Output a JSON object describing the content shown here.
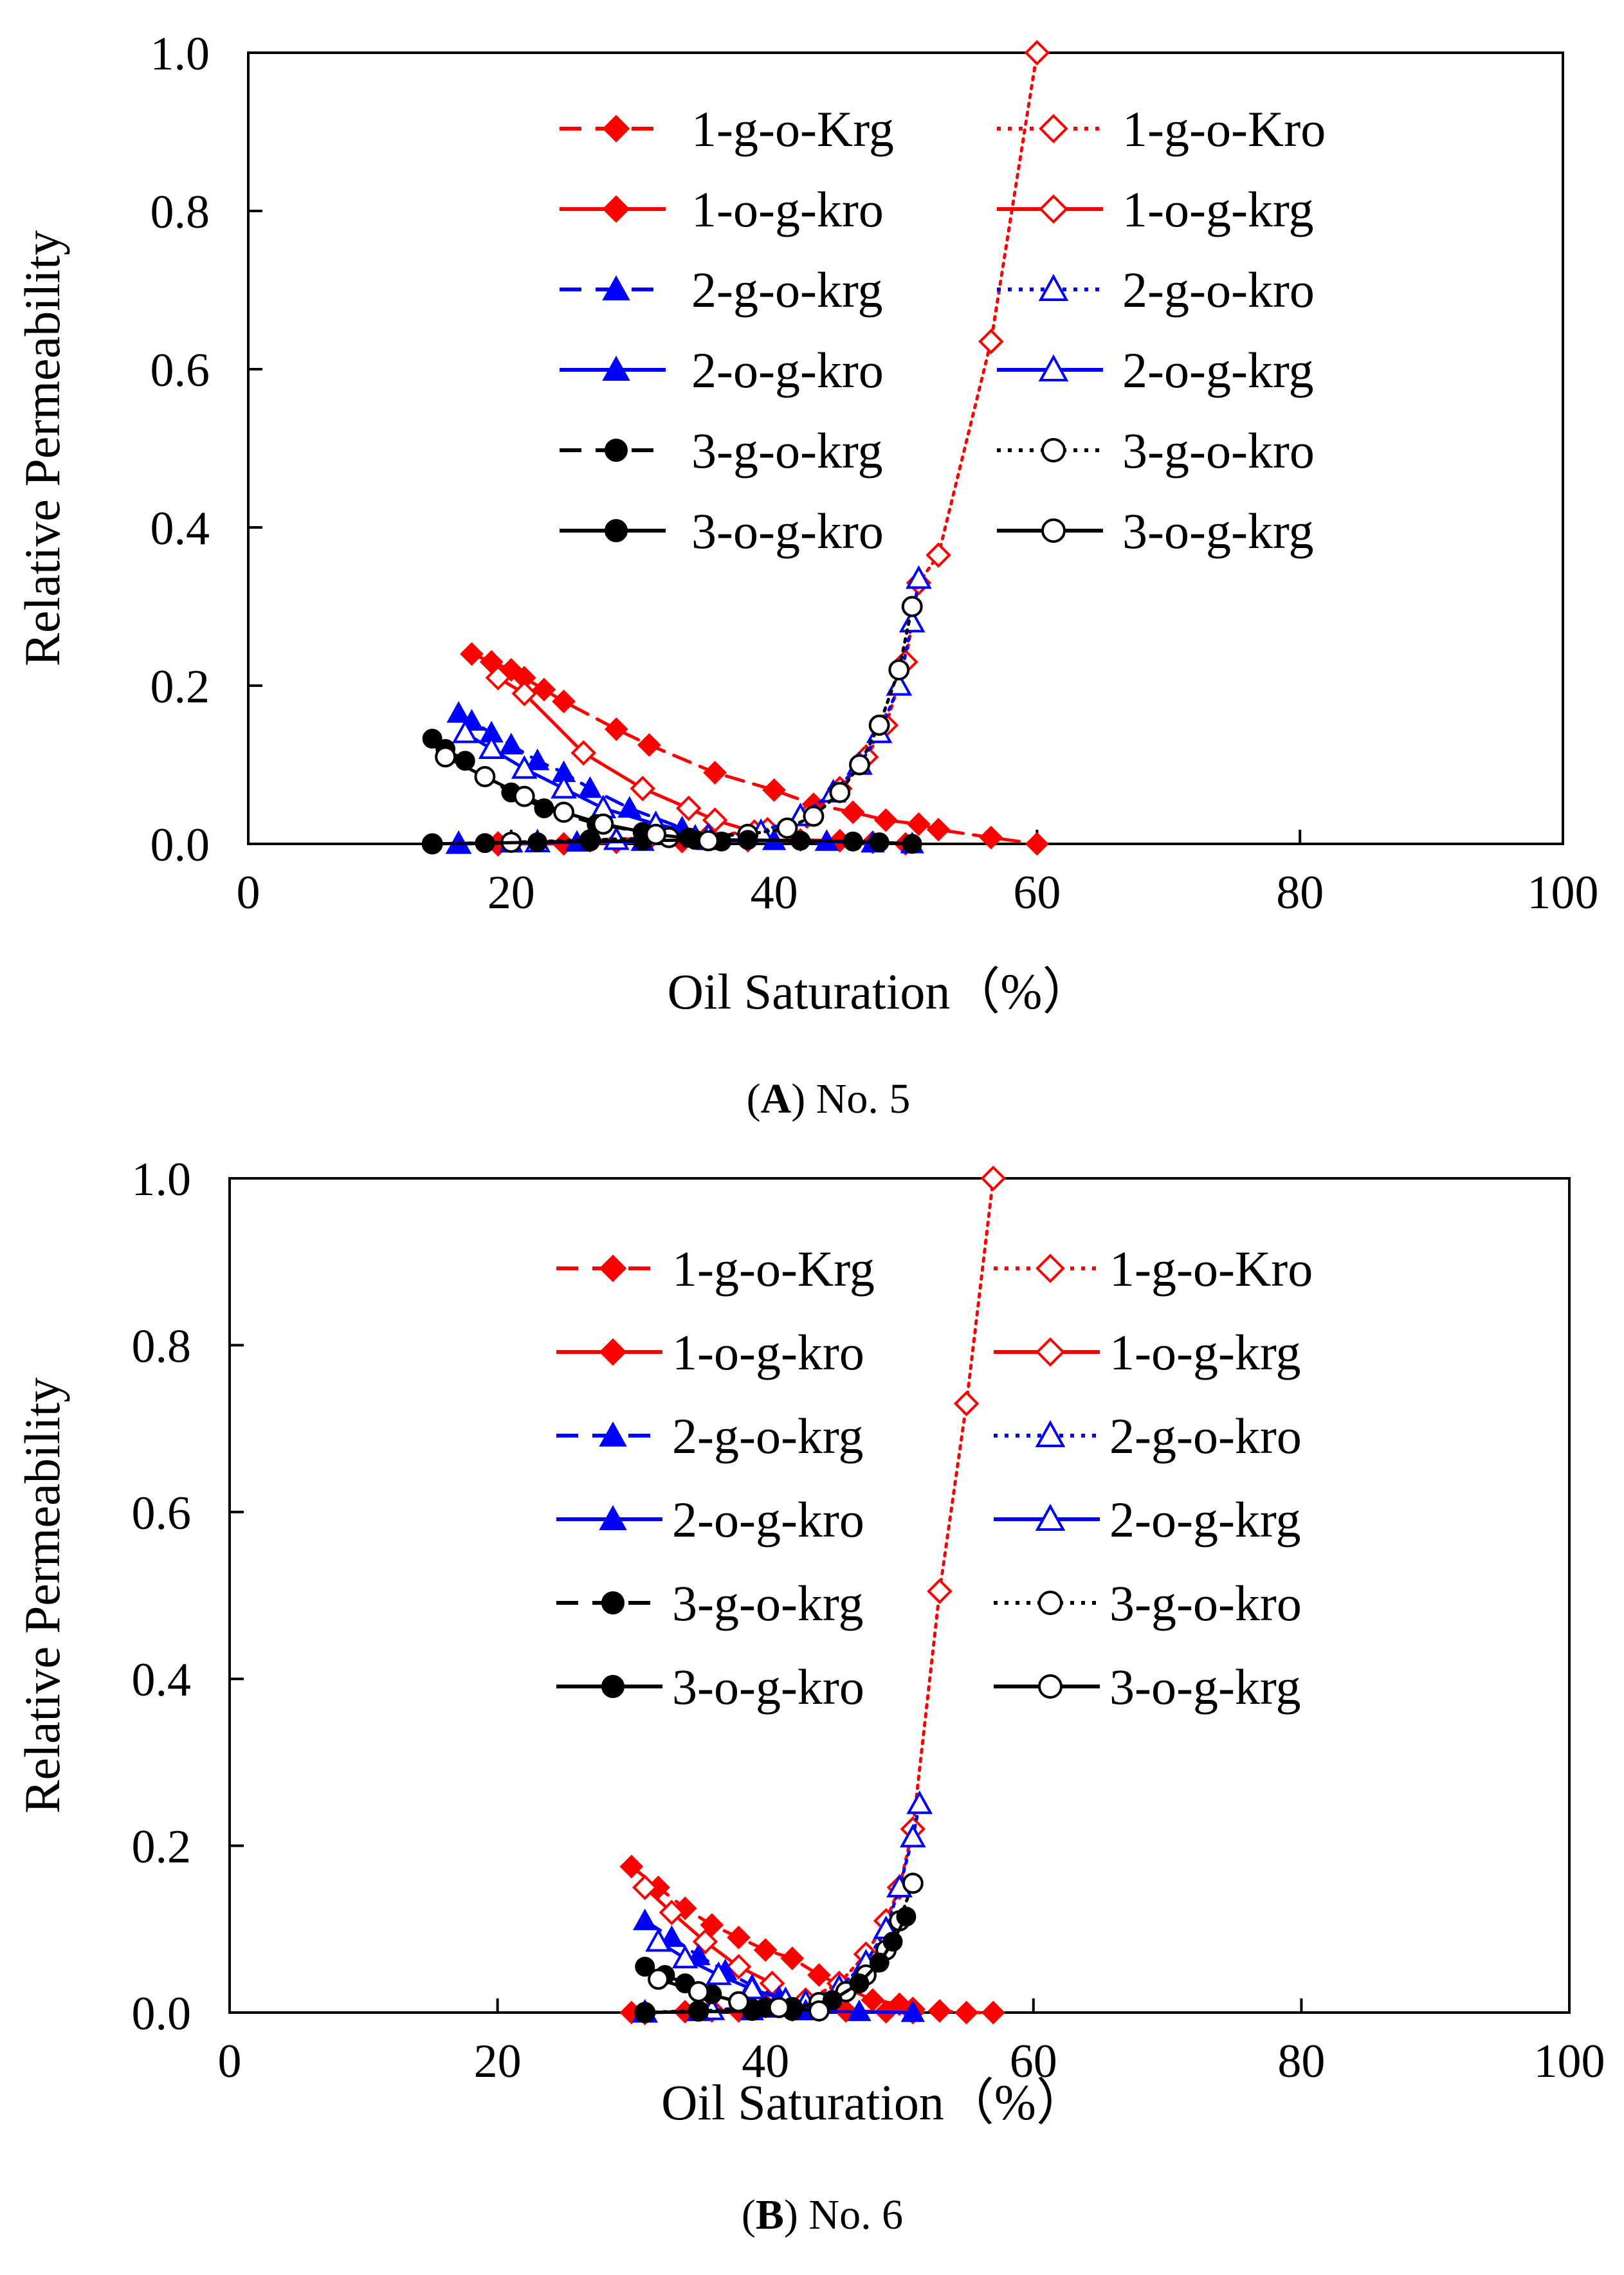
{
  "chart_data": [
    {
      "type": "line",
      "panel": "A",
      "caption": {
        "letter": "A",
        "text": " No. 5"
      },
      "xlabel": "Oil Saturation（%）",
      "ylabel": "Relative Permeability",
      "xlim": [
        0,
        100
      ],
      "ylim": [
        0,
        1.0
      ],
      "xticks": [
        "0",
        "20",
        "40",
        "60",
        "80",
        "100"
      ],
      "yticks": [
        "0.0",
        "0.2",
        "0.4",
        "0.6",
        "0.8",
        "1.0"
      ],
      "grid": false,
      "series": [
        {
          "name": "1-g-o-Krg",
          "color": "#ff0000",
          "dash": "dashed",
          "marker": "diamond",
          "filled": true,
          "x": [
            17,
            18.5,
            20,
            21,
            22.5,
            24,
            28,
            30.5,
            35.5,
            40,
            43,
            46,
            48.5,
            51,
            52.5,
            56.5,
            60
          ],
          "y": [
            0.24,
            0.23,
            0.22,
            0.21,
            0.195,
            0.18,
            0.145,
            0.125,
            0.09,
            0.068,
            0.05,
            0.04,
            0.03,
            0.025,
            0.018,
            0.008,
            0.0
          ]
        },
        {
          "name": "1-g-o-Kro",
          "color": "#ff0000",
          "dash": "dotted",
          "marker": "diamond",
          "filled": false,
          "x": [
            19,
            26,
            30.5,
            35,
            39.5,
            42.5,
            45,
            47,
            48.5,
            50,
            51,
            52.5,
            56.5,
            60
          ],
          "y": [
            0.0,
            0.005,
            0.007,
            0.01,
            0.018,
            0.035,
            0.07,
            0.11,
            0.15,
            0.23,
            0.33,
            0.365,
            0.635,
            1.0
          ]
        },
        {
          "name": "1-o-g-kro",
          "color": "#ff0000",
          "dash": "solid",
          "marker": "diamond",
          "filled": true,
          "x": [
            19,
            24,
            28,
            33,
            38,
            42,
            45,
            47.5,
            50
          ],
          "y": [
            0.0,
            0.0,
            0.002,
            0.003,
            0.004,
            0.005,
            0.004,
            0.002,
            0.0
          ]
        },
        {
          "name": "1-o-g-krg",
          "color": "#ff0000",
          "dash": "solid",
          "marker": "diamond",
          "filled": false,
          "x": [
            19,
            21,
            25.5,
            30,
            33.5,
            35.5,
            38.5
          ],
          "y": [
            0.21,
            0.19,
            0.115,
            0.07,
            0.045,
            0.03,
            0.015
          ]
        },
        {
          "name": "2-g-o-krg",
          "color": "#0000ff",
          "dash": "dashed",
          "marker": "triangle",
          "filled": true,
          "x": [
            16,
            17,
            18.5,
            20,
            22,
            24,
            26,
            29,
            33
          ],
          "y": [
            0.165,
            0.155,
            0.14,
            0.125,
            0.105,
            0.09,
            0.07,
            0.045,
            0.02
          ]
        },
        {
          "name": "2-g-o-kro",
          "color": "#0000ff",
          "dash": "dotted",
          "marker": "triangle",
          "filled": false,
          "x": [
            16,
            22,
            28,
            34,
            39,
            42,
            44.5,
            46.5,
            48,
            49.5,
            50.5,
            51
          ],
          "y": [
            0.0,
            0.002,
            0.005,
            0.008,
            0.015,
            0.035,
            0.065,
            0.1,
            0.14,
            0.2,
            0.28,
            0.335
          ]
        },
        {
          "name": "2-o-g-kro",
          "color": "#0000ff",
          "dash": "solid",
          "marker": "triangle",
          "filled": true,
          "x": [
            16,
            20,
            25,
            30,
            35,
            40,
            44,
            47.5,
            50.5
          ],
          "y": [
            0.0,
            0.001,
            0.002,
            0.003,
            0.004,
            0.004,
            0.003,
            0.001,
            0.0
          ]
        },
        {
          "name": "2-o-g-krg",
          "color": "#0000ff",
          "dash": "solid",
          "marker": "triangle",
          "filled": false,
          "x": [
            16.5,
            18.5,
            21,
            24,
            27,
            31,
            35
          ],
          "y": [
            0.14,
            0.12,
            0.095,
            0.07,
            0.045,
            0.025,
            0.01
          ]
        },
        {
          "name": "3-g-o-krg",
          "color": "#000000",
          "dash": "dashed",
          "marker": "circle",
          "filled": true,
          "x": [
            14,
            15,
            16.5,
            18,
            20,
            22.5,
            26.5,
            30,
            33.5,
            36
          ],
          "y": [
            0.133,
            0.12,
            0.105,
            0.085,
            0.065,
            0.045,
            0.025,
            0.015,
            0.008,
            0.003
          ]
        },
        {
          "name": "3-g-o-kro",
          "color": "#000000",
          "dash": "dotted",
          "marker": "circle",
          "filled": false,
          "x": [
            14,
            20,
            26,
            32,
            38,
            41,
            43,
            45,
            46.5,
            48,
            49.5,
            50.5
          ],
          "y": [
            0.0,
            0.002,
            0.005,
            0.008,
            0.012,
            0.02,
            0.035,
            0.065,
            0.1,
            0.15,
            0.22,
            0.3
          ]
        },
        {
          "name": "3-o-g-kro",
          "color": "#000000",
          "dash": "solid",
          "marker": "circle",
          "filled": true,
          "x": [
            14,
            18,
            22,
            26,
            30,
            34,
            38,
            42,
            46,
            48,
            50.5
          ],
          "y": [
            0.0,
            0.001,
            0.002,
            0.003,
            0.004,
            0.005,
            0.005,
            0.004,
            0.003,
            0.002,
            0.0
          ]
        },
        {
          "name": "3-o-g-krg",
          "color": "#000000",
          "dash": "solid",
          "marker": "circle",
          "filled": false,
          "x": [
            15,
            18,
            21,
            24,
            27,
            31,
            35
          ],
          "y": [
            0.11,
            0.085,
            0.06,
            0.04,
            0.025,
            0.012,
            0.004
          ]
        }
      ]
    },
    {
      "type": "line",
      "panel": "B",
      "caption": {
        "letter": "B",
        "text": " No. 6"
      },
      "xlabel": "Oil Saturation（%）",
      "ylabel": "Relative Permeability",
      "xlim": [
        0,
        100
      ],
      "ylim": [
        0,
        1.0
      ],
      "xticks": [
        "0",
        "20",
        "40",
        "60",
        "80",
        "100"
      ],
      "yticks": [
        "0.0",
        "0.2",
        "0.4",
        "0.6",
        "0.8",
        "1.0"
      ],
      "grid": false,
      "series": [
        {
          "name": "1-g-o-Krg",
          "color": "#ff0000",
          "dash": "dashed",
          "marker": "diamond",
          "filled": true,
          "x": [
            30,
            32,
            34,
            36,
            38,
            40,
            42,
            44,
            46,
            48,
            50,
            51,
            53,
            55,
            57
          ],
          "y": [
            0.175,
            0.15,
            0.125,
            0.105,
            0.09,
            0.075,
            0.065,
            0.045,
            0.03,
            0.015,
            0.01,
            0.005,
            0.002,
            0.0,
            0.0
          ]
        },
        {
          "name": "1-g-o-Kro",
          "color": "#ff0000",
          "dash": "dotted",
          "marker": "diamond",
          "filled": false,
          "x": [
            31,
            36,
            40,
            43,
            45.5,
            47.5,
            49,
            50,
            51,
            53,
            55,
            57
          ],
          "y": [
            0.0,
            0.003,
            0.008,
            0.015,
            0.035,
            0.07,
            0.11,
            0.15,
            0.22,
            0.505,
            0.73,
            1.0
          ]
        },
        {
          "name": "1-o-g-kro",
          "color": "#ff0000",
          "dash": "solid",
          "marker": "diamond",
          "filled": true,
          "x": [
            30,
            34,
            38,
            42,
            46,
            49,
            51
          ],
          "y": [
            0.0,
            0.001,
            0.002,
            0.003,
            0.002,
            0.001,
            0.0
          ]
        },
        {
          "name": "1-o-g-krg",
          "color": "#ff0000",
          "dash": "solid",
          "marker": "diamond",
          "filled": false,
          "x": [
            31,
            33,
            35.5,
            38,
            40.5
          ],
          "y": [
            0.15,
            0.12,
            0.085,
            0.055,
            0.035
          ]
        },
        {
          "name": "2-g-o-krg",
          "color": "#0000ff",
          "dash": "dashed",
          "marker": "triangle",
          "filled": true,
          "x": [
            31,
            33,
            35,
            37,
            39,
            41
          ],
          "y": [
            0.11,
            0.09,
            0.068,
            0.05,
            0.032,
            0.018
          ]
        },
        {
          "name": "2-g-o-kro",
          "color": "#0000ff",
          "dash": "dotted",
          "marker": "triangle",
          "filled": false,
          "x": [
            31,
            36,
            40,
            43,
            45.5,
            47.5,
            49,
            50,
            51,
            51.5
          ],
          "y": [
            0.0,
            0.003,
            0.006,
            0.012,
            0.03,
            0.06,
            0.1,
            0.15,
            0.21,
            0.25
          ]
        },
        {
          "name": "2-o-g-kro",
          "color": "#0000ff",
          "dash": "solid",
          "marker": "triangle",
          "filled": true,
          "x": [
            31,
            35,
            39,
            43,
            47,
            51
          ],
          "y": [
            0.0,
            0.001,
            0.002,
            0.002,
            0.001,
            0.0
          ]
        },
        {
          "name": "2-o-g-krg",
          "color": "#0000ff",
          "dash": "solid",
          "marker": "triangle",
          "filled": false,
          "x": [
            32,
            34,
            36.5,
            39,
            41.5
          ],
          "y": [
            0.085,
            0.065,
            0.045,
            0.028,
            0.015
          ]
        },
        {
          "name": "3-g-o-krg",
          "color": "#000000",
          "dash": "dashed",
          "marker": "circle",
          "filled": true,
          "x": [
            31,
            32.5,
            34,
            36,
            38,
            40,
            42
          ],
          "y": [
            0.055,
            0.045,
            0.035,
            0.022,
            0.012,
            0.006,
            0.002
          ]
        },
        {
          "name": "3-g-o-kro",
          "color": "#000000",
          "dash": "dotted",
          "marker": "circle",
          "filled": false,
          "x": [
            31,
            35,
            39,
            42,
            44,
            46,
            47.5,
            49,
            50,
            51
          ],
          "y": [
            0.0,
            0.002,
            0.004,
            0.006,
            0.012,
            0.025,
            0.045,
            0.075,
            0.11,
            0.155
          ]
        },
        {
          "name": "3-o-g-kro",
          "color": "#000000",
          "dash": "solid",
          "marker": "circle",
          "filled": true,
          "x": [
            31,
            35,
            39,
            42,
            45,
            47,
            48.5,
            49.5,
            50.5
          ],
          "y": [
            0.0,
            0.001,
            0.002,
            0.005,
            0.015,
            0.035,
            0.06,
            0.085,
            0.115
          ]
        },
        {
          "name": "3-o-g-krg",
          "color": "#000000",
          "dash": "solid",
          "marker": "circle",
          "filled": false,
          "x": [
            32,
            35,
            38,
            41,
            44
          ],
          "y": [
            0.04,
            0.025,
            0.013,
            0.006,
            0.002
          ]
        }
      ]
    }
  ]
}
